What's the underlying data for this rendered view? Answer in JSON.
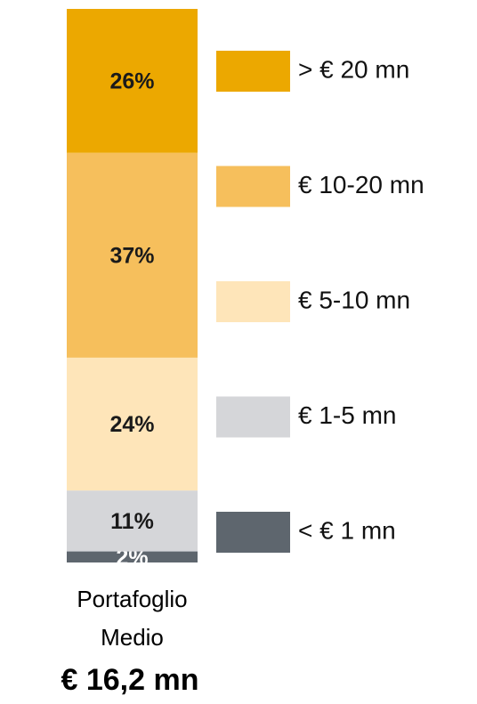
{
  "chart_data": {
    "type": "stacked_bar",
    "categories": [
      "Portafoglio Medio"
    ],
    "annotation": "€ 16,2 mn",
    "ylim": [
      0,
      100
    ],
    "series": [
      {
        "name": "< € 1 mn",
        "color": "#5e666e",
        "values": [
          2
        ],
        "value_labels": [
          "2%"
        ]
      },
      {
        "name": "€ 1-5 mn",
        "color": "#d5d6d9",
        "values": [
          11
        ],
        "value_labels": [
          "11%"
        ]
      },
      {
        "name": "€ 5-10 mn",
        "color": "#fee5b9",
        "values": [
          24
        ],
        "value_labels": [
          "24%"
        ]
      },
      {
        "name": "€ 10-20 mn",
        "color": "#f6bf5c",
        "values": [
          37
        ],
        "value_labels": [
          "37%"
        ]
      },
      {
        "name": "> € 20 mn",
        "color": "#eca800",
        "values": [
          26
        ],
        "value_labels": [
          "26%"
        ]
      }
    ]
  }
}
